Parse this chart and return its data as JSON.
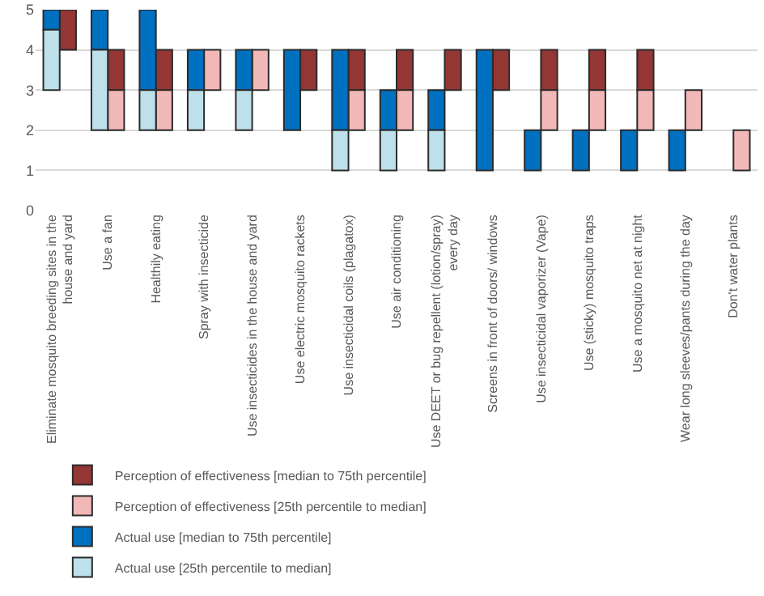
{
  "chart_data": {
    "type": "bar",
    "categories": [
      "Eliminate mosquito breeding sites in the house and yard",
      "Use a fan",
      "Healthily eating",
      "Spray with insecticide",
      "Use insecticides in the house and yard",
      "Use electric mosquito rackets",
      "Use insecticidal coils (plagatox)",
      "Use air conditioning",
      "Use DEET or bug repellent (lotion/spray) every day",
      "Screens in front of doors/ windows",
      "Use insecticidal vaporizer (Vape)",
      "Use (sticky) mosquito traps",
      "Use a mosquito net at night",
      "Wear long sleeves/pants during the day",
      "Don't water plants"
    ],
    "series": [
      {
        "name": "Perception of effectiveness [median to 75th percentile]",
        "color": "#943634",
        "base": [
          4,
          3,
          3,
          null,
          null,
          3,
          3,
          3,
          3,
          3,
          3,
          3,
          3,
          null,
          null
        ],
        "values": [
          1,
          1,
          1,
          null,
          null,
          1,
          1,
          1,
          1,
          1,
          1,
          1,
          1,
          null,
          null
        ]
      },
      {
        "name": "Perception of effectiveness [25th percentile to median]",
        "color": "#f2b8b8",
        "base": [
          null,
          2,
          2,
          3,
          3,
          null,
          2,
          2,
          null,
          null,
          2,
          2,
          2,
          2,
          1
        ],
        "values": [
          null,
          1,
          1,
          1,
          1,
          null,
          1,
          1,
          null,
          null,
          1,
          1,
          1,
          1,
          1
        ]
      },
      {
        "name": "Actual use [median to 75th percentile]",
        "color": "#0070c0",
        "base": [
          4.5,
          4,
          3,
          3,
          3,
          2,
          2,
          2,
          2,
          1,
          1,
          1,
          1,
          1,
          null
        ],
        "values": [
          0.5,
          1,
          2,
          1,
          1,
          2,
          2,
          1,
          1,
          3,
          1,
          1,
          1,
          1,
          null
        ]
      },
      {
        "name": "Actual use [25th percentile to median]",
        "color": "#bde0eb",
        "base": [
          3,
          2,
          2,
          2,
          2,
          null,
          1,
          1,
          1,
          null,
          null,
          null,
          null,
          null,
          null
        ],
        "values": [
          1.5,
          2,
          1,
          1,
          1,
          null,
          1,
          1,
          1,
          null,
          null,
          null,
          null,
          null,
          null
        ]
      }
    ],
    "ylim": [
      0,
      5
    ],
    "yticks": [
      0,
      1,
      2,
      3,
      4,
      5
    ],
    "grid": "y",
    "legend": "bottom left"
  }
}
